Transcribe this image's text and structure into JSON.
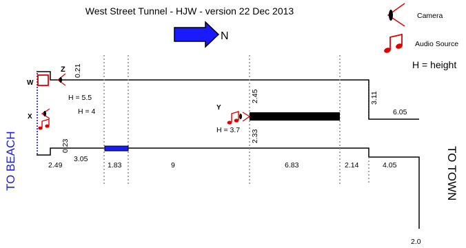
{
  "title": "West Street Tunnel - HJW - version 22 Dec 2013",
  "north_label": "N",
  "legend": {
    "camera_label": "Camera",
    "audio_label": "Audio Source",
    "height_note": "H = height",
    "camera_icon": "camera-eye-icon",
    "audio_icon": "music-note-icon"
  },
  "side_labels": {
    "left": "TO  BEACH",
    "right": "TO  TOWN"
  },
  "points": {
    "w": "W",
    "x": "X",
    "y": "Y",
    "z": "Z"
  },
  "heights": {
    "w": "H = 5.5",
    "x": "H = 4",
    "y": "H = 3.7"
  },
  "dimensions": {
    "bottom": [
      "2.49",
      "3.05",
      "1.83",
      "9",
      "6.83",
      "2.14",
      "4.05"
    ],
    "upper_right": "6.05",
    "lower_right": "2.0",
    "vertical": {
      "z_gap": "0.21",
      "left_gap": "0.23",
      "y_above": "2.45",
      "y_below": "2.33",
      "right_step": "3.11"
    }
  },
  "colors": {
    "arrow": "#1a1aff",
    "marker_red": "#e00000",
    "blue_block": "#1a1aff",
    "dotted_blue": "#0000cc",
    "dotted_grey": "#8a8a8a",
    "title_blue": "#2020d0"
  }
}
